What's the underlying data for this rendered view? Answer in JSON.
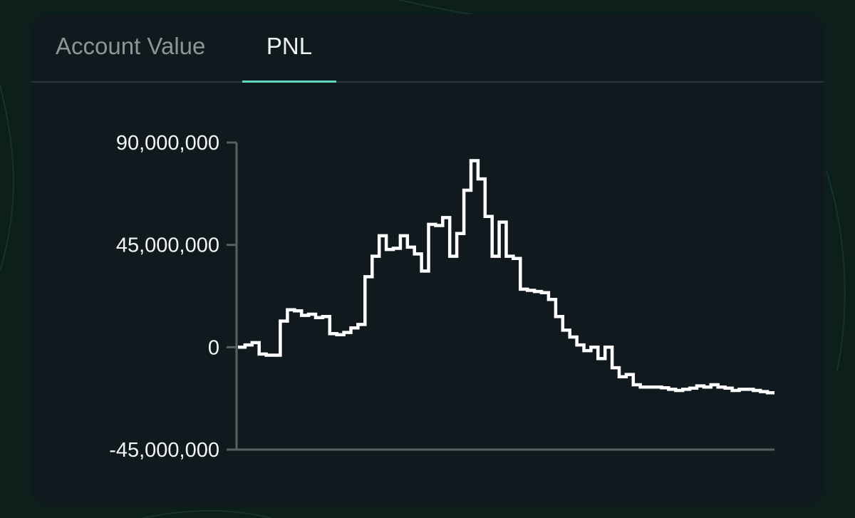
{
  "colors": {
    "background": "#0c1f1a",
    "card": "#101a1e",
    "accent": "#5fd8c4",
    "line": "#ffffff",
    "axis": "#5a6062",
    "tab_inactive": "#8d9598",
    "tab_active": "#eef2f3"
  },
  "tabs": [
    {
      "label": "Account Value",
      "active": false
    },
    {
      "label": "PNL",
      "active": true
    }
  ],
  "chart_data": {
    "type": "line",
    "step": true,
    "title": "",
    "xlabel": "",
    "ylabel": "",
    "ylim": [
      -45000000,
      90000000
    ],
    "yticks": [
      90000000,
      45000000,
      0,
      -45000000
    ],
    "ytick_labels": [
      "90,000,000",
      "45,000,000",
      "0",
      "-45,000,000"
    ],
    "grid": false,
    "series": [
      {
        "values": [
          0,
          1000000,
          2000000,
          -3000000,
          -3500000,
          -3500000,
          11500000,
          16500000,
          16000000,
          14000000,
          14500000,
          13000000,
          13500000,
          6000000,
          5500000,
          6500000,
          8500000,
          10000000,
          31000000,
          40000000,
          49000000,
          43000000,
          43500000,
          49000000,
          44000000,
          41000000,
          33500000,
          54000000,
          53500000,
          57000000,
          40000000,
          50000000,
          69000000,
          82000000,
          74000000,
          57500000,
          40000000,
          55000000,
          40000000,
          39000000,
          25500000,
          25000000,
          24500000,
          24000000,
          21000000,
          13500000,
          7500000,
          4500000,
          1000000,
          -1500000,
          0,
          -5000000,
          0,
          -9000000,
          -13000000,
          -12000000,
          -16500000,
          -17500000,
          -17500000,
          -17500000,
          -17800000,
          -18500000,
          -19000000,
          -18500000,
          -18000000,
          -17000000,
          -17500000,
          -16500000,
          -17500000,
          -18000000,
          -19000000,
          -18500000,
          -18500000,
          -19000000,
          -19500000,
          -20000000
        ]
      }
    ]
  }
}
